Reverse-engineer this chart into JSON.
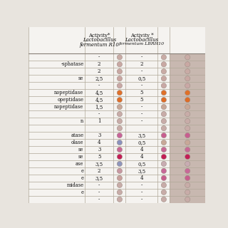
{
  "col_headers_R10": [
    "Activity*",
    "Lactobacillus",
    "fermentum R10"
  ],
  "col_headers_LBRH10": [
    "Activity *",
    "Lactobacillus",
    "fermentum LBRH10"
  ],
  "row_labels": [
    "",
    "-sphatase",
    "",
    "se",
    "",
    "nopeptidase",
    "opeptidase",
    "nopeptidase",
    "",
    "n",
    "",
    "atase",
    "olase",
    "se",
    "se",
    "ase",
    "e",
    "e",
    "midase",
    "e",
    ""
  ],
  "values_R10": [
    "-",
    "2",
    "2",
    "2,5",
    "-",
    "4,5",
    "4,5",
    "1,5",
    "-",
    "1",
    "",
    "3",
    "4",
    "3",
    "5",
    "3,5",
    "2",
    "3,5",
    "-",
    "-",
    "-"
  ],
  "values_LBRH10": [
    "-",
    "2",
    "-",
    "0,5",
    "-",
    "5",
    "5",
    "-",
    "-",
    "-",
    "",
    "3,5",
    "0,5",
    "4",
    "4",
    "0,5",
    "3,5",
    "4",
    "-",
    "-",
    "-"
  ],
  "circles_R10": [
    "#c9aba5",
    "#c9a8a3",
    "#c9a8a3",
    "#c9a6a2",
    "#c9a8a5",
    "#e0702a",
    "#df6e28",
    "#c8a898",
    "#c8aca8",
    "#c8aca8",
    "#c8aca8",
    "#c8649a",
    "#8a92be",
    "#c86896",
    "#c41e56",
    "#8e96bc",
    "#c898a2",
    "#c8a09c",
    "#c8aca8",
    "#c8aca8",
    "#c8aca8"
  ],
  "circles_LBRH10": [
    "#c9aba5",
    "#c9a8a3",
    "#c9aba5",
    "#c9a8a3",
    "#c9a8a5",
    "#e07028",
    "#de6c26",
    "#c8a898",
    "#c8aca8",
    "#c8aca8",
    "#c8aca8",
    "#c85e90",
    "#c8a898",
    "#c86896",
    "#c41e56",
    "#c8acb2",
    "#c86898",
    "#c85e8e",
    "#c8aca8",
    "#c8aca8",
    "#c8aca8"
  ],
  "strip_bg": "#c8b8b0",
  "bg_color": "#e8e4de",
  "table_bg": "#f5f3f0",
  "line_color": "#b0a898",
  "header_line_color": "#888078"
}
